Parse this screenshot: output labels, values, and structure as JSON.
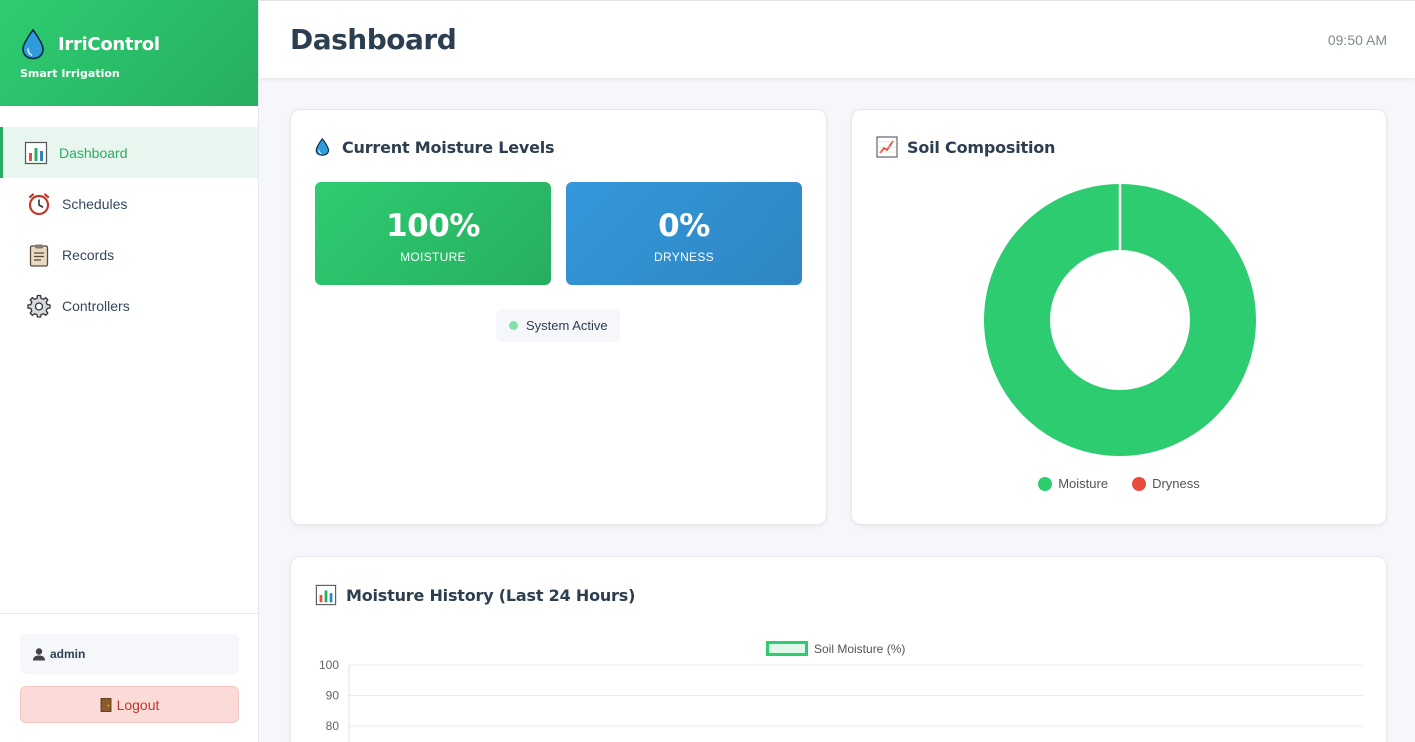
{
  "brand": {
    "title": "IrriControl",
    "subtitle": "Smart Irrigation"
  },
  "sidebar": {
    "items": [
      {
        "label": "Dashboard",
        "icon": "bar-chart-icon",
        "active": true
      },
      {
        "label": "Schedules",
        "icon": "alarm-clock-icon",
        "active": false
      },
      {
        "label": "Records",
        "icon": "clipboard-icon",
        "active": false
      },
      {
        "label": "Controllers",
        "icon": "gear-icon",
        "active": false
      }
    ],
    "user": "admin",
    "logout_label": "Logout"
  },
  "header": {
    "title": "Dashboard",
    "time": "09:50 AM"
  },
  "moisture_card": {
    "title": "Current Moisture Levels",
    "moisture_value": "100%",
    "moisture_label": "MOISTURE",
    "dryness_value": "0%",
    "dryness_label": "DRYNESS",
    "status": "System Active"
  },
  "soil_card": {
    "title": "Soil Composition",
    "legend": [
      "Moisture",
      "Dryness"
    ]
  },
  "history_card": {
    "title": "Moisture History (Last 24 Hours)",
    "series_label": "Soil Moisture (%)",
    "y_ticks": [
      "100",
      "90",
      "80"
    ]
  },
  "colors": {
    "green": "#2ecc71",
    "red": "#e74c3c",
    "blue": "#3498db"
  },
  "chart_data": [
    {
      "type": "pie",
      "title": "Soil Composition",
      "categories": [
        "Moisture",
        "Dryness"
      ],
      "values": [
        100,
        0
      ],
      "colors": [
        "#2ecc71",
        "#e74c3c"
      ],
      "legend": "bottom"
    },
    {
      "type": "line",
      "title": "Moisture History (Last 24 Hours)",
      "series": [
        {
          "name": "Soil Moisture (%)",
          "values": []
        }
      ],
      "ylim": [
        80,
        100
      ],
      "y_ticks": [
        100,
        90,
        80
      ],
      "grid": true,
      "legend": "top"
    }
  ]
}
